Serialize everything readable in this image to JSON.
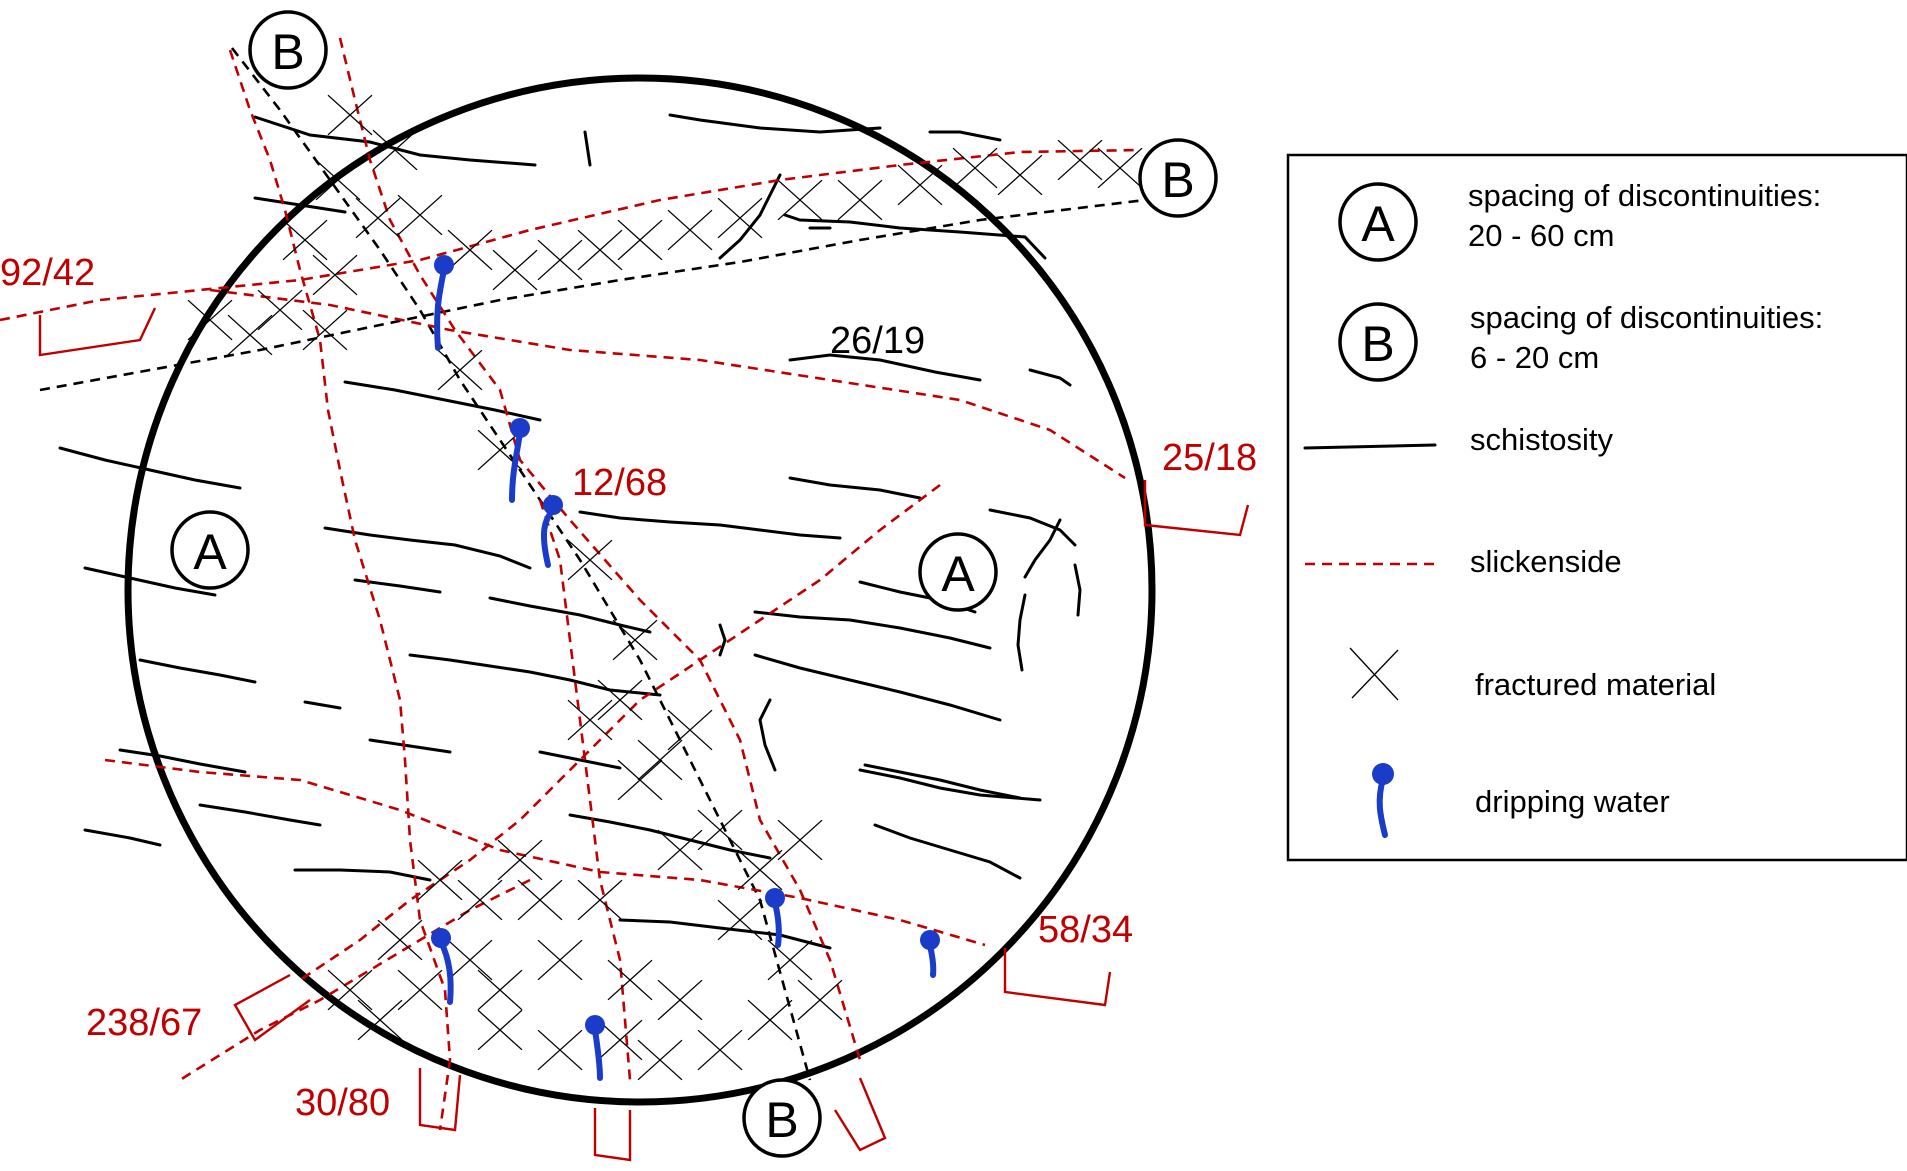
{
  "orientation_labels": {
    "l1": "92/42",
    "l2": "26/19",
    "l3": "25/18",
    "l4": "12/68",
    "l5": "58/34",
    "l6": "238/67",
    "l7": "30/80"
  },
  "zone_labels": {
    "a": "A",
    "b": "B"
  },
  "legend": {
    "a_line1": "spacing of discontinuities:",
    "a_line2": "20 - 60 cm",
    "b_line1": "spacing of discontinuities:",
    "b_line2": "6 - 20 cm",
    "schistosity": "schistosity",
    "slickenside": "slickenside",
    "fractured": "fractured material",
    "dripping": "dripping water"
  },
  "colors": {
    "slickenside": "#c00000",
    "water": "#1a3cc8",
    "schistosity": "#000000"
  }
}
